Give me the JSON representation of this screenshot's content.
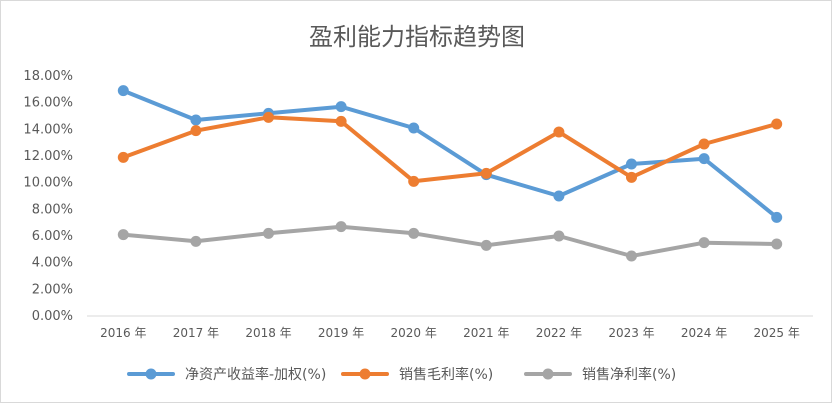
{
  "chart_data": {
    "type": "line",
    "title": "盈利能力指标趋势图",
    "categories": [
      "2016 年",
      "2017 年",
      "2018 年",
      "2019 年",
      "2020 年",
      "2021 年",
      "2022 年",
      "2023 年",
      "2024 年",
      "2025 年"
    ],
    "y_ticks": [
      "0.00%",
      "2.00%",
      "4.00%",
      "6.00%",
      "8.00%",
      "10.00%",
      "12.00%",
      "14.00%",
      "16.00%",
      "18.00%"
    ],
    "ylim": [
      0,
      18
    ],
    "grid": false,
    "legend_position": "bottom",
    "series": [
      {
        "name": "净资产收益率-加权(%)",
        "color": "#5b9bd5",
        "values": [
          16.9,
          14.7,
          15.2,
          15.7,
          14.1,
          10.6,
          9.0,
          11.4,
          11.8,
          7.4
        ]
      },
      {
        "name": "销售毛利率(%)",
        "color": "#ed7d31",
        "values": [
          11.9,
          13.9,
          14.9,
          14.6,
          10.1,
          10.7,
          13.8,
          10.4,
          12.9,
          14.4
        ]
      },
      {
        "name": "销售净利率(%)",
        "color": "#a5a5a5",
        "values": [
          6.1,
          5.6,
          6.2,
          6.7,
          6.2,
          5.3,
          6.0,
          4.5,
          5.5,
          5.4
        ]
      }
    ]
  }
}
